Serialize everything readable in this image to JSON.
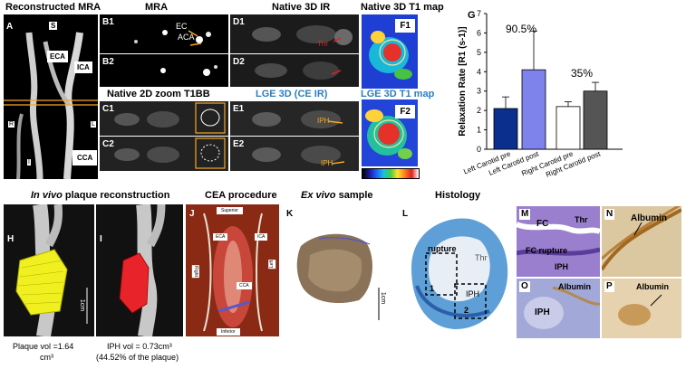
{
  "titles": {
    "reconstructed_mra": "Reconstructed MRA",
    "mra": "MRA",
    "native_3d_ir": "Native 3D IR",
    "native_3d_t1_map": "Native 3D T1 map",
    "native_2d_zoom": "Native 2D zoom T1BB",
    "lge_3d": "LGE 3D (CE IR)",
    "lge_3d_t1_map": "LGE 3D T1 map",
    "invivo_prefix": "In vivo",
    "invivo_rest": " plaque reconstruction",
    "cea_procedure": "CEA procedure",
    "exvivo_prefix": "Ex vivo",
    "exvivo_rest": " sample",
    "histology": "Histology"
  },
  "panel_labels": {
    "A": "A",
    "B1": "B1",
    "B2": "B2",
    "C1": "C1",
    "C2": "C2",
    "D1": "D1",
    "D2": "D2",
    "E1": "E1",
    "E2": "E2",
    "F1": "F1",
    "F2": "F2",
    "G": "G",
    "H": "H",
    "I": "I",
    "J": "J",
    "K": "K",
    "L": "L",
    "M": "M",
    "N": "N",
    "O": "O",
    "P": "P"
  },
  "annotations": {
    "mra_S": "S",
    "mra_ECA": "ECA",
    "mra_ICA": "ICA",
    "mra_R": "R",
    "mra_L": "L",
    "mra_I": "I",
    "mra_CCA": "CCA",
    "b1_EC": "EC",
    "b1_ACA": "ACA",
    "d1_thr": "Thr",
    "e1_iph": "IPH",
    "e2_iph": "IPH",
    "j_superior": "Superior",
    "j_eca": "ECA",
    "j_ica": "ICA",
    "j_right": "Right",
    "j_left": "Left",
    "j_cca": "CCA",
    "j_inferior": "Inferior",
    "scale_1cm": "1cm",
    "l_rupture": "rupture",
    "l_thr": "Thr",
    "l_iph": "IPH",
    "l_1": "1",
    "l_2": "2",
    "m_fc": "FC",
    "m_thr": "Thr",
    "m_fc_rupture": "FC rupture",
    "m_iph": "IPH",
    "n_albumin": "Albumin",
    "o_albumin": "Albumin",
    "o_iph": "IPH",
    "p_albumin": "Albumin"
  },
  "captions": {
    "plaque_vol_line1": "Plaque vol =1.64",
    "plaque_vol_line2": "cm³",
    "iph_vol_line1": "IPH vol = 0.73cm³",
    "iph_vol_line2": "(44.52% of the plaque)"
  },
  "chart_data": {
    "type": "bar",
    "title": "",
    "ylabel": "Relaxation Rate [R1 (s-1)]",
    "xlabel": "",
    "ylim": [
      0,
      7
    ],
    "yticks": [
      0,
      1,
      2,
      3,
      4,
      5,
      6,
      7
    ],
    "categories": [
      "Left Carotid pre",
      "Left Carotid post",
      "Right Carotid pre",
      "Right Carotid post"
    ],
    "values": [
      2.1,
      4.1,
      2.2,
      3.0
    ],
    "errors": [
      0.6,
      2.0,
      0.25,
      0.45
    ],
    "colors": [
      "#0a2f8c",
      "#7d83ea",
      "#ffffff",
      "#555555"
    ],
    "annotations": [
      "90.5%",
      "35%"
    ]
  }
}
